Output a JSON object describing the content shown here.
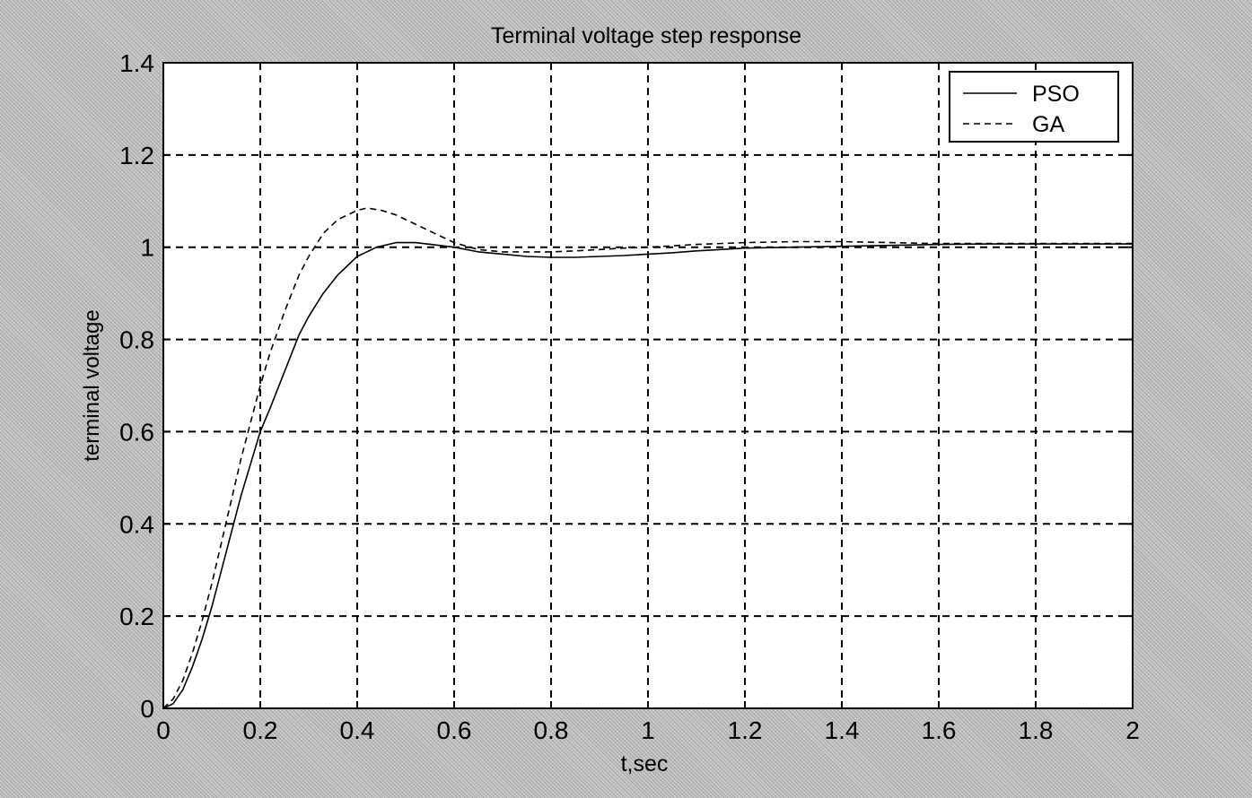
{
  "chart_data": {
    "type": "line",
    "title": "Terminal voltage step response",
    "xlabel": "t,sec",
    "ylabel": "terminal voltage",
    "xlim": [
      0,
      2
    ],
    "ylim": [
      0,
      1.4
    ],
    "grid": true,
    "legend_position": "top-right",
    "x_ticks": [
      0,
      0.2,
      0.4,
      0.6,
      0.8,
      1,
      1.2,
      1.4,
      1.6,
      1.8,
      2
    ],
    "x_tick_labels": [
      "0",
      "0.2",
      "0.4",
      "0.6",
      "0.8",
      "1",
      "1.2",
      "1.4",
      "1.6",
      "1.8",
      "2"
    ],
    "y_ticks": [
      0,
      0.2,
      0.4,
      0.6,
      0.8,
      1,
      1.2,
      1.4
    ],
    "y_tick_labels": [
      "0",
      "0.2",
      "0.4",
      "0.6",
      "0.8",
      "1",
      "1.2",
      "1.4"
    ],
    "series": [
      {
        "name": "PSO",
        "style": "solid",
        "color": "#000000",
        "x": [
          0,
          0.02,
          0.04,
          0.06,
          0.08,
          0.1,
          0.12,
          0.14,
          0.16,
          0.18,
          0.2,
          0.22,
          0.25,
          0.28,
          0.3,
          0.33,
          0.36,
          0.4,
          0.44,
          0.48,
          0.52,
          0.56,
          0.6,
          0.65,
          0.7,
          0.75,
          0.8,
          0.85,
          0.9,
          0.95,
          1.0,
          1.05,
          1.1,
          1.15,
          1.2,
          1.3,
          1.4,
          1.5,
          1.6,
          1.7,
          1.8,
          1.9,
          2.0
        ],
        "y": [
          0,
          0.01,
          0.04,
          0.09,
          0.15,
          0.22,
          0.3,
          0.38,
          0.46,
          0.53,
          0.6,
          0.65,
          0.73,
          0.81,
          0.85,
          0.9,
          0.94,
          0.98,
          1.0,
          1.01,
          1.01,
          1.005,
          1.0,
          0.99,
          0.985,
          0.98,
          0.978,
          0.978,
          0.98,
          0.982,
          0.985,
          0.988,
          0.992,
          0.995,
          0.998,
          1.0,
          1.002,
          1.004,
          1.006,
          1.007,
          1.007,
          1.007,
          1.007
        ]
      },
      {
        "name": "GA",
        "style": "dashed",
        "color": "#000000",
        "x": [
          0,
          0.02,
          0.04,
          0.06,
          0.08,
          0.1,
          0.12,
          0.14,
          0.16,
          0.18,
          0.2,
          0.22,
          0.25,
          0.28,
          0.3,
          0.33,
          0.36,
          0.4,
          0.42,
          0.45,
          0.48,
          0.52,
          0.56,
          0.6,
          0.65,
          0.7,
          0.75,
          0.8,
          0.85,
          0.9,
          0.95,
          1.0,
          1.05,
          1.1,
          1.2,
          1.3,
          1.4,
          1.5,
          1.6,
          1.7,
          1.8,
          1.9,
          2.0
        ],
        "y": [
          0,
          0.02,
          0.06,
          0.12,
          0.19,
          0.27,
          0.36,
          0.45,
          0.54,
          0.62,
          0.7,
          0.77,
          0.86,
          0.94,
          0.98,
          1.03,
          1.06,
          1.08,
          1.085,
          1.08,
          1.07,
          1.05,
          1.03,
          1.01,
          0.995,
          0.99,
          0.99,
          0.99,
          0.992,
          0.995,
          0.998,
          1.0,
          1.003,
          1.006,
          1.01,
          1.012,
          1.012,
          1.01,
          1.008,
          1.008,
          1.008,
          1.008,
          1.008
        ]
      }
    ]
  }
}
